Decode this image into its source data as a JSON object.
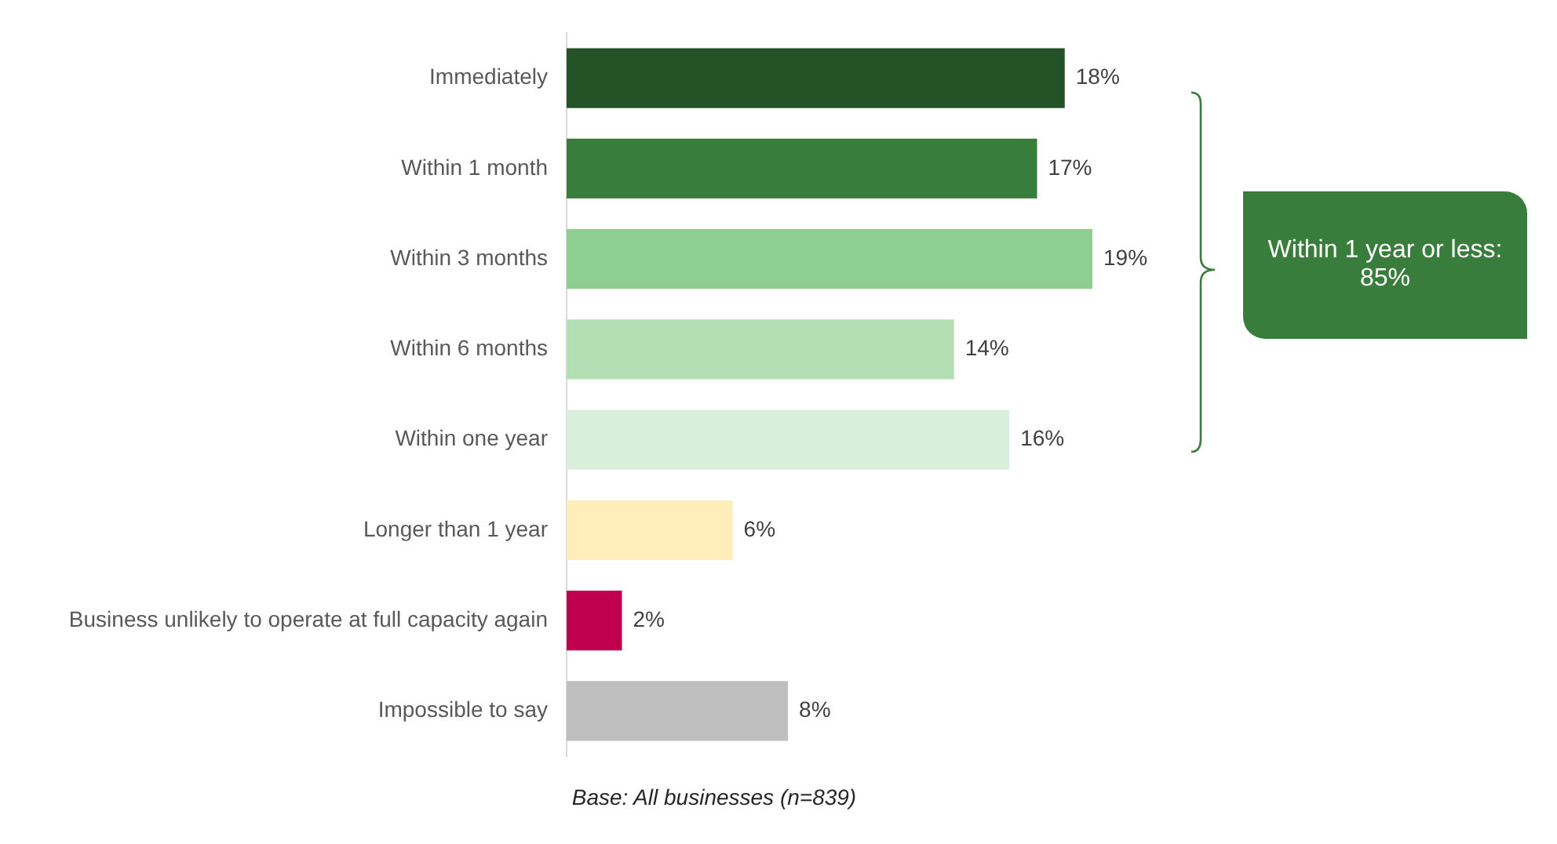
{
  "chart_data": {
    "type": "bar",
    "orientation": "horizontal",
    "categories": [
      "Immediately",
      "Within 1 month",
      "Within 3 months",
      "Within 6 months",
      "Within one year",
      "Longer than 1 year",
      "Business unlikely to operate at full capacity again",
      "Impossible to say"
    ],
    "values": [
      18,
      17,
      19,
      14,
      16,
      6,
      2,
      8
    ],
    "value_labels": [
      "18%",
      "17%",
      "19%",
      "14%",
      "16%",
      "6%",
      "2%",
      "8%"
    ],
    "colors": [
      "#245227",
      "#387d3b",
      "#8ecf91",
      "#b4dfb5",
      "#d9eedb",
      "#ffedba",
      "#c0004f",
      "#bfbfbf"
    ],
    "grid": false,
    "legend": false,
    "annotations": [
      "Within 1 year or less: 85%",
      "Base: All businesses (n=839)"
    ]
  }
}
